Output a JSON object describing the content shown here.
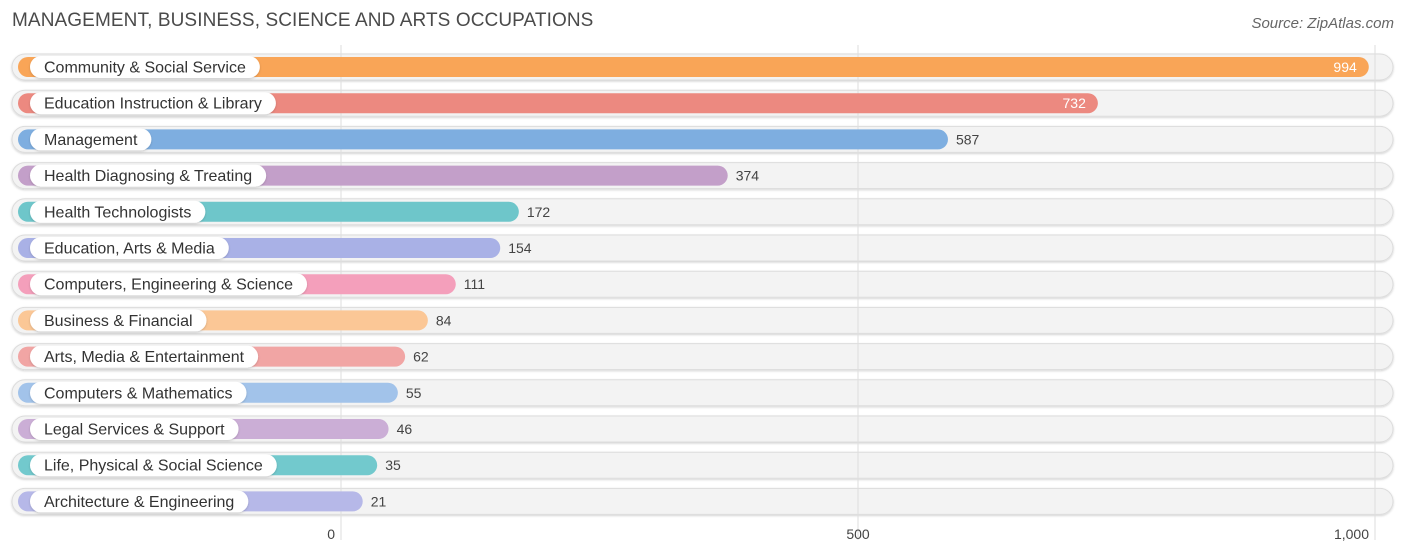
{
  "title": "MANAGEMENT, BUSINESS, SCIENCE AND ARTS OCCUPATIONS",
  "source": "Source: ZipAtlas.com",
  "chart_data": {
    "type": "bar",
    "orientation": "horizontal",
    "title": "MANAGEMENT, BUSINESS, SCIENCE AND ARTS OCCUPATIONS",
    "xlabel": "",
    "ylabel": "",
    "xlim": [
      0,
      1000
    ],
    "grid": true,
    "x_ticks": [
      {
        "value": 0,
        "label": "0"
      },
      {
        "value": 500,
        "label": "500"
      },
      {
        "value": 1000,
        "label": "1,000"
      }
    ],
    "categories": [
      "Community & Social Service",
      "Education Instruction & Library",
      "Management",
      "Health Diagnosing & Treating",
      "Health Technologists",
      "Education, Arts & Media",
      "Computers, Engineering & Science",
      "Business & Financial",
      "Arts, Media & Entertainment",
      "Computers & Mathematics",
      "Legal Services & Support",
      "Life, Physical & Social Science",
      "Architecture & Engineering"
    ],
    "values": [
      994,
      732,
      587,
      374,
      172,
      154,
      111,
      84,
      62,
      55,
      46,
      35,
      21
    ],
    "colors": [
      "#f9a557",
      "#ec8980",
      "#7eaee0",
      "#c39fc9",
      "#6ec6ca",
      "#a9b1e6",
      "#f49fbb",
      "#fbc796",
      "#f1a5a4",
      "#a2c3ea",
      "#cbaed6",
      "#72c9cd",
      "#b6b8e8"
    ]
  }
}
